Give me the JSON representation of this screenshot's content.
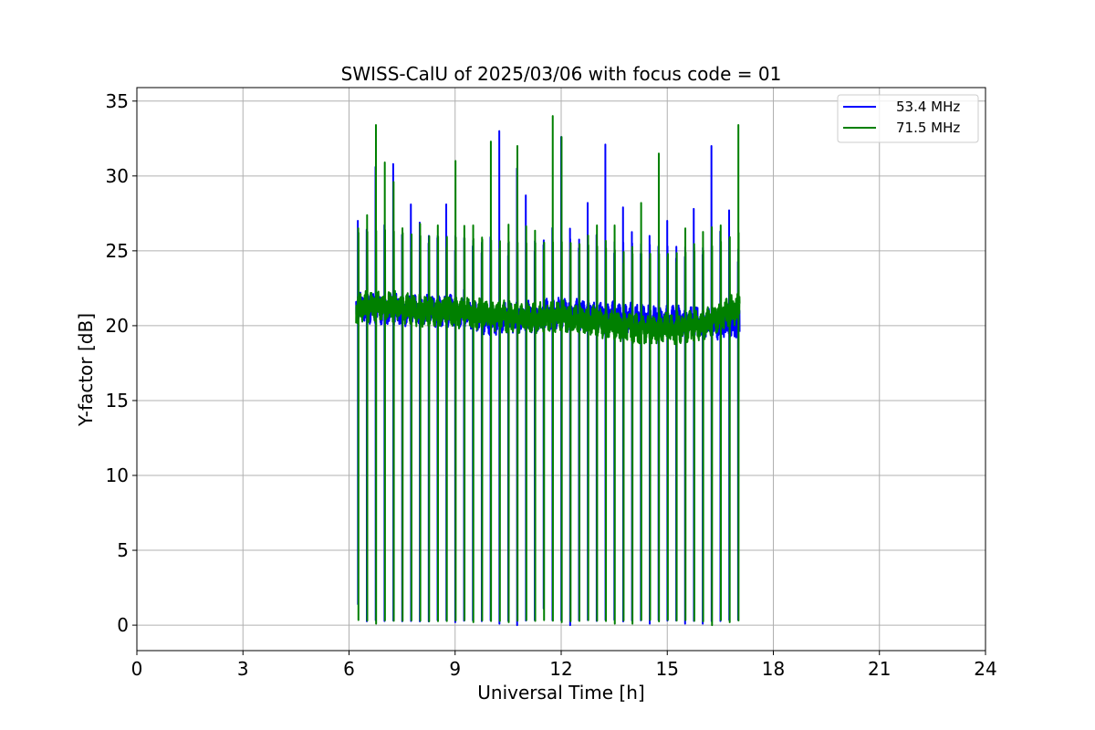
{
  "chart_data": {
    "type": "line",
    "title": "SWISS-CalU of 2025/03/06 with focus code = 01",
    "xlabel": "Universal Time [h]",
    "ylabel": "Y-factor [dB]",
    "xlim": [
      0,
      24
    ],
    "ylim": [
      -1.7,
      35.9
    ],
    "xticks": [
      0,
      3,
      6,
      9,
      12,
      15,
      18,
      21,
      24
    ],
    "yticks": [
      0,
      5,
      10,
      15,
      20,
      25,
      30,
      35
    ],
    "grid": true,
    "legend": "top-right",
    "data_start_h": 6.2,
    "data_end_h": 17.05,
    "calibration_cycle_h": 0.25,
    "series": [
      {
        "name": "53.4 MHz",
        "color": "#0000ff",
        "baseline_points": [
          [
            6.25,
            21.3
          ],
          [
            7.0,
            21.1
          ],
          [
            8.0,
            21.0
          ],
          [
            9.0,
            21.0
          ],
          [
            10.0,
            20.4
          ],
          [
            11.0,
            20.6
          ],
          [
            12.0,
            20.8
          ],
          [
            13.0,
            20.7
          ],
          [
            14.0,
            20.5
          ],
          [
            15.0,
            20.3
          ],
          [
            16.0,
            20.2
          ],
          [
            17.0,
            20.1
          ]
        ],
        "spike_points": [
          [
            6.35,
            27.0
          ],
          [
            6.65,
            30.6
          ],
          [
            7.15,
            30.8
          ],
          [
            7.75,
            28.1
          ],
          [
            8.3,
            25.5
          ],
          [
            8.75,
            28.1
          ],
          [
            9.3,
            22.4
          ],
          [
            10.2,
            33.0
          ],
          [
            10.75,
            30.5
          ],
          [
            11.05,
            28.7
          ],
          [
            12.05,
            32.6
          ],
          [
            12.85,
            28.2
          ],
          [
            13.2,
            32.1
          ],
          [
            13.85,
            27.9
          ],
          [
            14.6,
            26.0
          ],
          [
            15.1,
            27.0
          ],
          [
            15.8,
            27.8
          ],
          [
            16.2,
            32.0
          ],
          [
            16.8,
            27.7
          ]
        ],
        "dip_points": [
          [
            6.25,
            1.4
          ],
          [
            7.3,
            0.3
          ],
          [
            8.9,
            0.2
          ],
          [
            10.2,
            0.1
          ],
          [
            10.8,
            0.0
          ],
          [
            11.5,
            1.1
          ],
          [
            12.3,
            0.0
          ],
          [
            14.5,
            0.1
          ],
          [
            15.5,
            0.1
          ],
          [
            16.1,
            0.1
          ]
        ]
      },
      {
        "name": "71.5 MHz",
        "color": "#008000",
        "baseline_points": [
          [
            6.25,
            21.2
          ],
          [
            7.0,
            21.4
          ],
          [
            8.0,
            21.0
          ],
          [
            9.0,
            20.9
          ],
          [
            10.0,
            20.7
          ],
          [
            11.0,
            20.5
          ],
          [
            12.0,
            20.6
          ],
          [
            13.0,
            20.3
          ],
          [
            14.0,
            19.8
          ],
          [
            15.0,
            19.8
          ],
          [
            16.0,
            20.0
          ],
          [
            17.0,
            21.2
          ]
        ],
        "spike_points": [
          [
            6.25,
            26.5
          ],
          [
            6.85,
            33.4
          ],
          [
            7.05,
            30.9
          ],
          [
            7.25,
            29.6
          ],
          [
            7.95,
            26.8
          ],
          [
            8.45,
            26.7
          ],
          [
            9.1,
            31.0
          ],
          [
            9.55,
            26.7
          ],
          [
            10.05,
            32.3
          ],
          [
            10.65,
            32.0
          ],
          [
            11.85,
            34.0
          ],
          [
            12.05,
            32.6
          ],
          [
            12.95,
            26.7
          ],
          [
            13.6,
            26.7
          ],
          [
            14.2,
            28.2
          ],
          [
            14.85,
            31.5
          ],
          [
            15.5,
            26.5
          ],
          [
            16.5,
            26.7
          ],
          [
            16.9,
            33.4
          ]
        ],
        "dip_points": [
          [
            6.5,
            0.3
          ],
          [
            6.75,
            0.1
          ],
          [
            9.5,
            0.2
          ],
          [
            10.5,
            0.2
          ],
          [
            12.0,
            0.2
          ],
          [
            13.5,
            0.1
          ],
          [
            14.0,
            0.1
          ],
          [
            16.25,
            0.0
          ],
          [
            16.75,
            0.2
          ]
        ]
      }
    ]
  }
}
